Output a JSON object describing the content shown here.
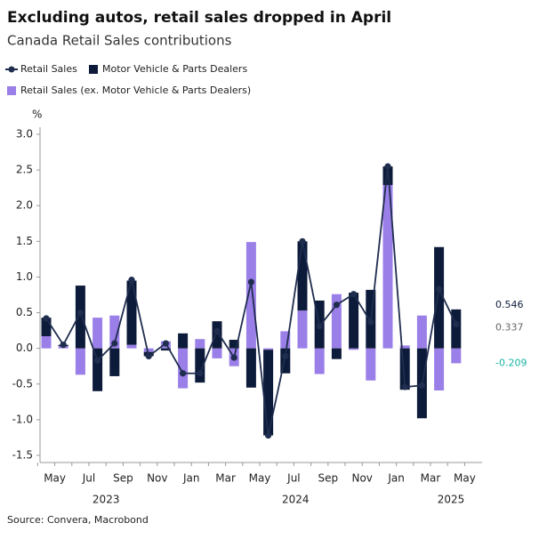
{
  "chart_data": {
    "type": "bar-line",
    "title": "Excluding autos, retail sales dropped in April",
    "subtitle": "Canada Retail Sales contributions",
    "y_label": "%",
    "source": "Source: Convera, Macrobond",
    "categories": [
      null,
      "May",
      null,
      "Jul",
      null,
      "Sep",
      null,
      "Nov",
      null,
      "Jan",
      null,
      "Mar",
      null,
      "May",
      null,
      "Jul",
      null,
      "Sep",
      null,
      "Nov",
      null,
      "Jan",
      null,
      "Mar",
      null
    ],
    "final_label": "May",
    "year_labels": [
      "2023",
      "2024",
      "2025"
    ],
    "ylim": [
      -1.6,
      3.1
    ],
    "yticks": [
      {
        "value": -1.5,
        "label": "-1.5"
      },
      {
        "value": -1,
        "label": "-1.0"
      },
      -0.5,
      {
        "value": 0,
        "label": "0.0"
      },
      0.5,
      {
        "value": 1,
        "label": "1.0"
      },
      1.5,
      {
        "value": 2,
        "label": "2.0"
      },
      2.5,
      {
        "value": 3,
        "label": "3.0"
      }
    ],
    "series": [
      {
        "name": "Retail Sales (ex. Motor Vehicle & Parts Dealers)",
        "kind": "bar",
        "color": "#9b7fe8",
        "label_color": "#17b3a3",
        "end_label": "-0.209",
        "values": [
          0.17,
          0.03,
          -0.37,
          0.43,
          0.46,
          0.05,
          -0.05,
          0.1,
          -0.56,
          0.13,
          -0.14,
          -0.25,
          1.49,
          -0.02,
          0.24,
          0.53,
          -0.36,
          0.76,
          -0.02,
          -0.45,
          2.29,
          0.04,
          0.46,
          -0.59,
          -0.209
        ]
      },
      {
        "name": "Motor Vehicle & Parts Dealers",
        "kind": "bar",
        "color": "#0d1b3a",
        "label_color": "#0d1b3a",
        "end_label": "0.546",
        "values": [
          0.26,
          0.02,
          0.88,
          -0.6,
          -0.39,
          0.9,
          -0.06,
          -0.03,
          0.21,
          -0.48,
          0.38,
          0.12,
          -0.55,
          -1.2,
          -0.35,
          0.97,
          0.67,
          -0.15,
          0.78,
          0.82,
          0.26,
          -0.58,
          -0.98,
          1.42,
          0.546
        ]
      },
      {
        "name": "Retail Sales",
        "kind": "line",
        "color": "#1f2d4e",
        "label_color": "#666666",
        "end_label": "0.337",
        "values": [
          0.42,
          0.05,
          0.5,
          -0.17,
          0.07,
          0.96,
          -0.11,
          0.07,
          -0.35,
          -0.35,
          0.24,
          -0.13,
          0.93,
          -1.22,
          -0.11,
          1.5,
          0.31,
          0.61,
          0.76,
          0.37,
          2.55,
          -0.54,
          -0.52,
          0.83,
          0.337
        ]
      }
    ]
  }
}
